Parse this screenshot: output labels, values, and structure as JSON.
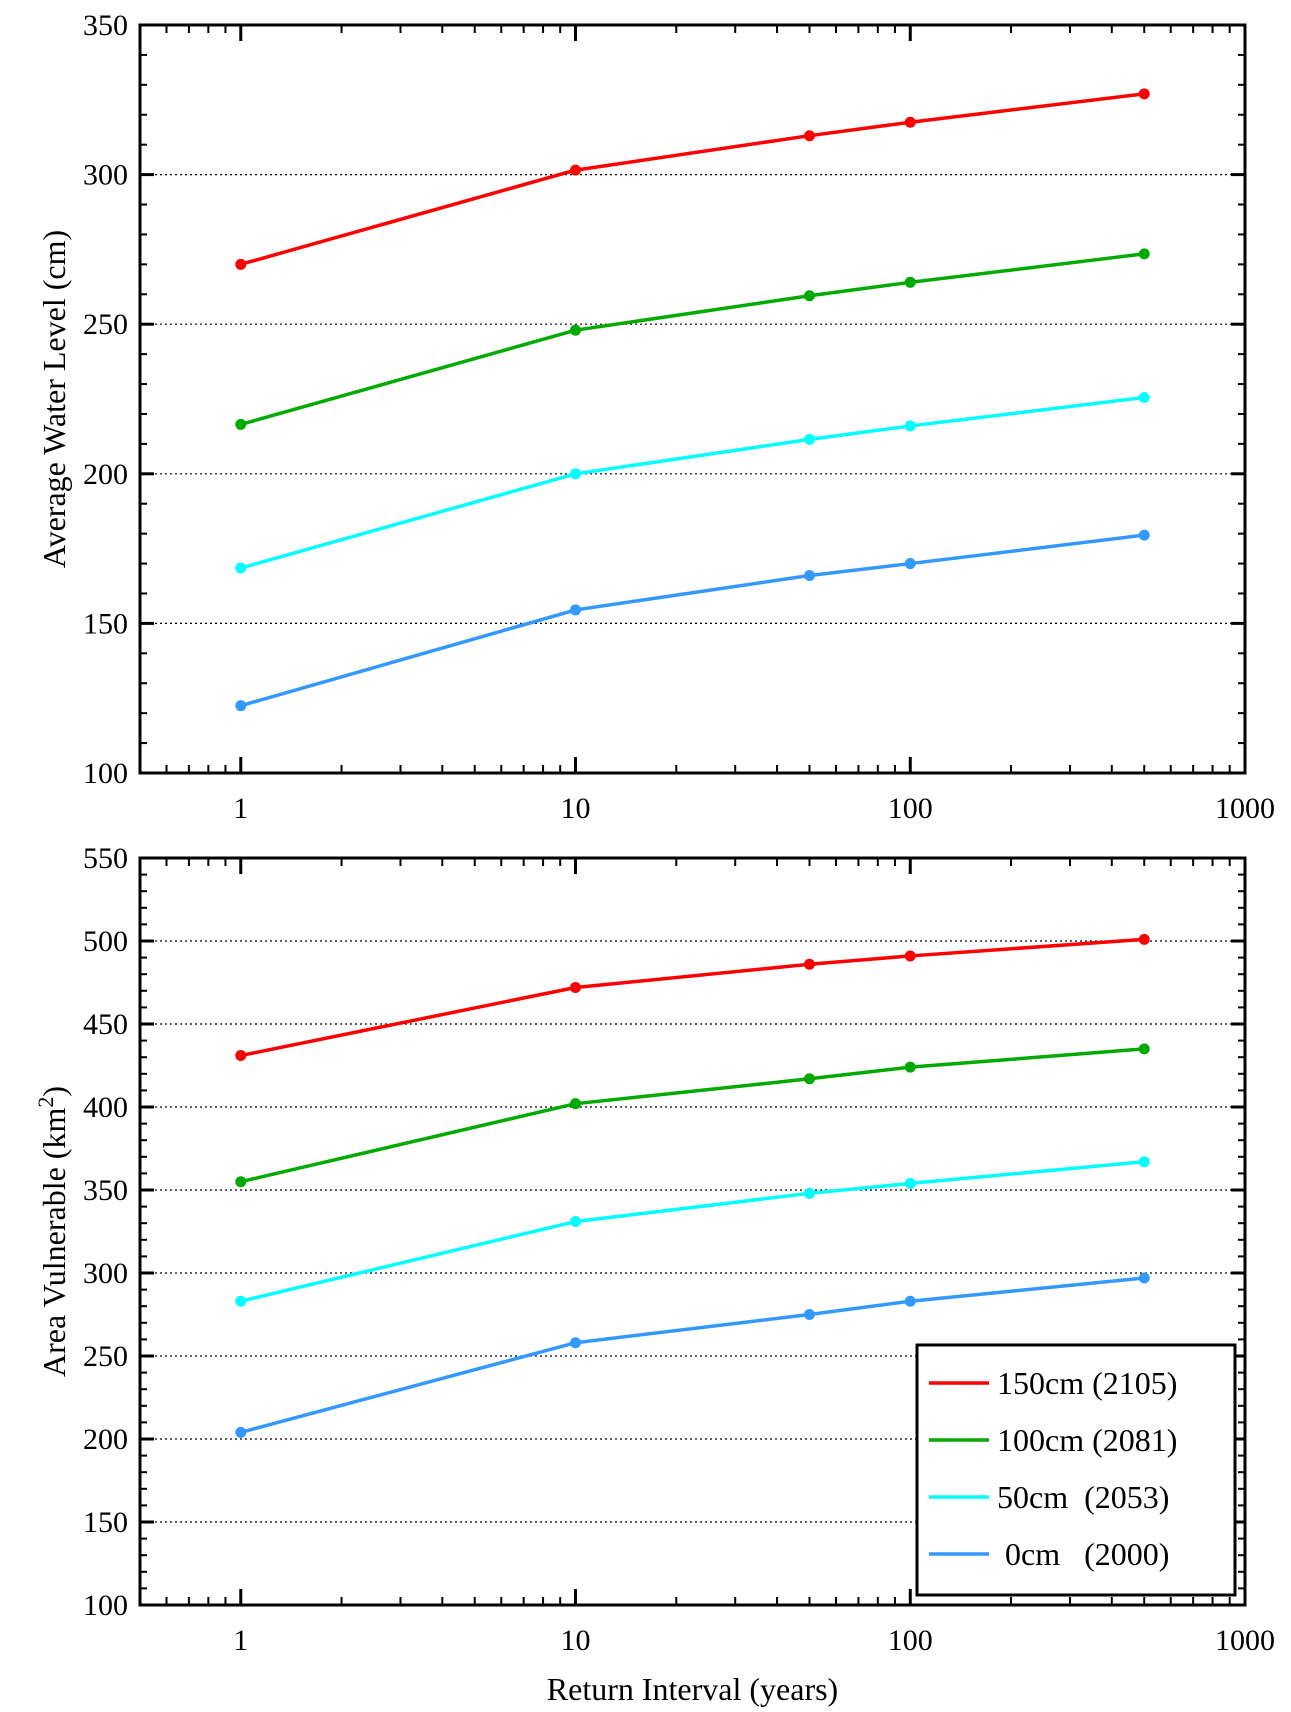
{
  "chart_data": [
    {
      "type": "line",
      "xscale": "log",
      "xlim": [
        0.5,
        1000
      ],
      "ylim": [
        100,
        350
      ],
      "x": [
        1,
        10,
        50,
        100,
        500
      ],
      "xticks": [
        "1",
        "10",
        "100",
        "1000"
      ],
      "yticks": [
        "100",
        "150",
        "200",
        "250",
        "300",
        "350"
      ],
      "xlabel": "",
      "ylabel": "Average Water Level (cm)",
      "grid": "horizontal-dotted",
      "series": [
        {
          "color": "#ff0000",
          "values": [
            270,
            301.5,
            313,
            317.5,
            327
          ]
        },
        {
          "color": "#00aa00",
          "values": [
            216.5,
            248,
            259.5,
            264,
            273.5
          ]
        },
        {
          "color": "#00ffff",
          "values": [
            168.5,
            200,
            211.5,
            216,
            225.5
          ]
        },
        {
          "color": "#3399ff",
          "values": [
            122.5,
            154.5,
            166,
            170,
            179.5
          ]
        }
      ]
    },
    {
      "type": "line",
      "xscale": "log",
      "xlim": [
        0.5,
        1000
      ],
      "ylim": [
        100,
        550
      ],
      "x": [
        1,
        10,
        50,
        100,
        500
      ],
      "xticks": [
        "1",
        "10",
        "100",
        "1000"
      ],
      "yticks": [
        "100",
        "150",
        "200",
        "250",
        "300",
        "350",
        "400",
        "450",
        "500",
        "550"
      ],
      "xlabel": "Return Interval (years)",
      "ylabel": "Area Vulnerable (km",
      "ylabel_sup": "2",
      "ylabel_end": ")",
      "grid": "horizontal-dotted",
      "legend_position": "bottom-right",
      "series": [
        {
          "name": "150cm (2105)",
          "color": "#ff0000",
          "values": [
            431,
            472,
            486,
            491,
            501
          ]
        },
        {
          "name": "100cm (2081)",
          "color": "#00aa00",
          "values": [
            355,
            402,
            417,
            424,
            435
          ]
        },
        {
          "name": "50cm  (2053)",
          "color": "#00ffff",
          "values": [
            283,
            331,
            348,
            354,
            367
          ]
        },
        {
          "name": " 0cm   (2000)",
          "color": "#3399ff",
          "values": [
            204,
            258,
            275,
            283,
            297
          ]
        }
      ]
    }
  ]
}
